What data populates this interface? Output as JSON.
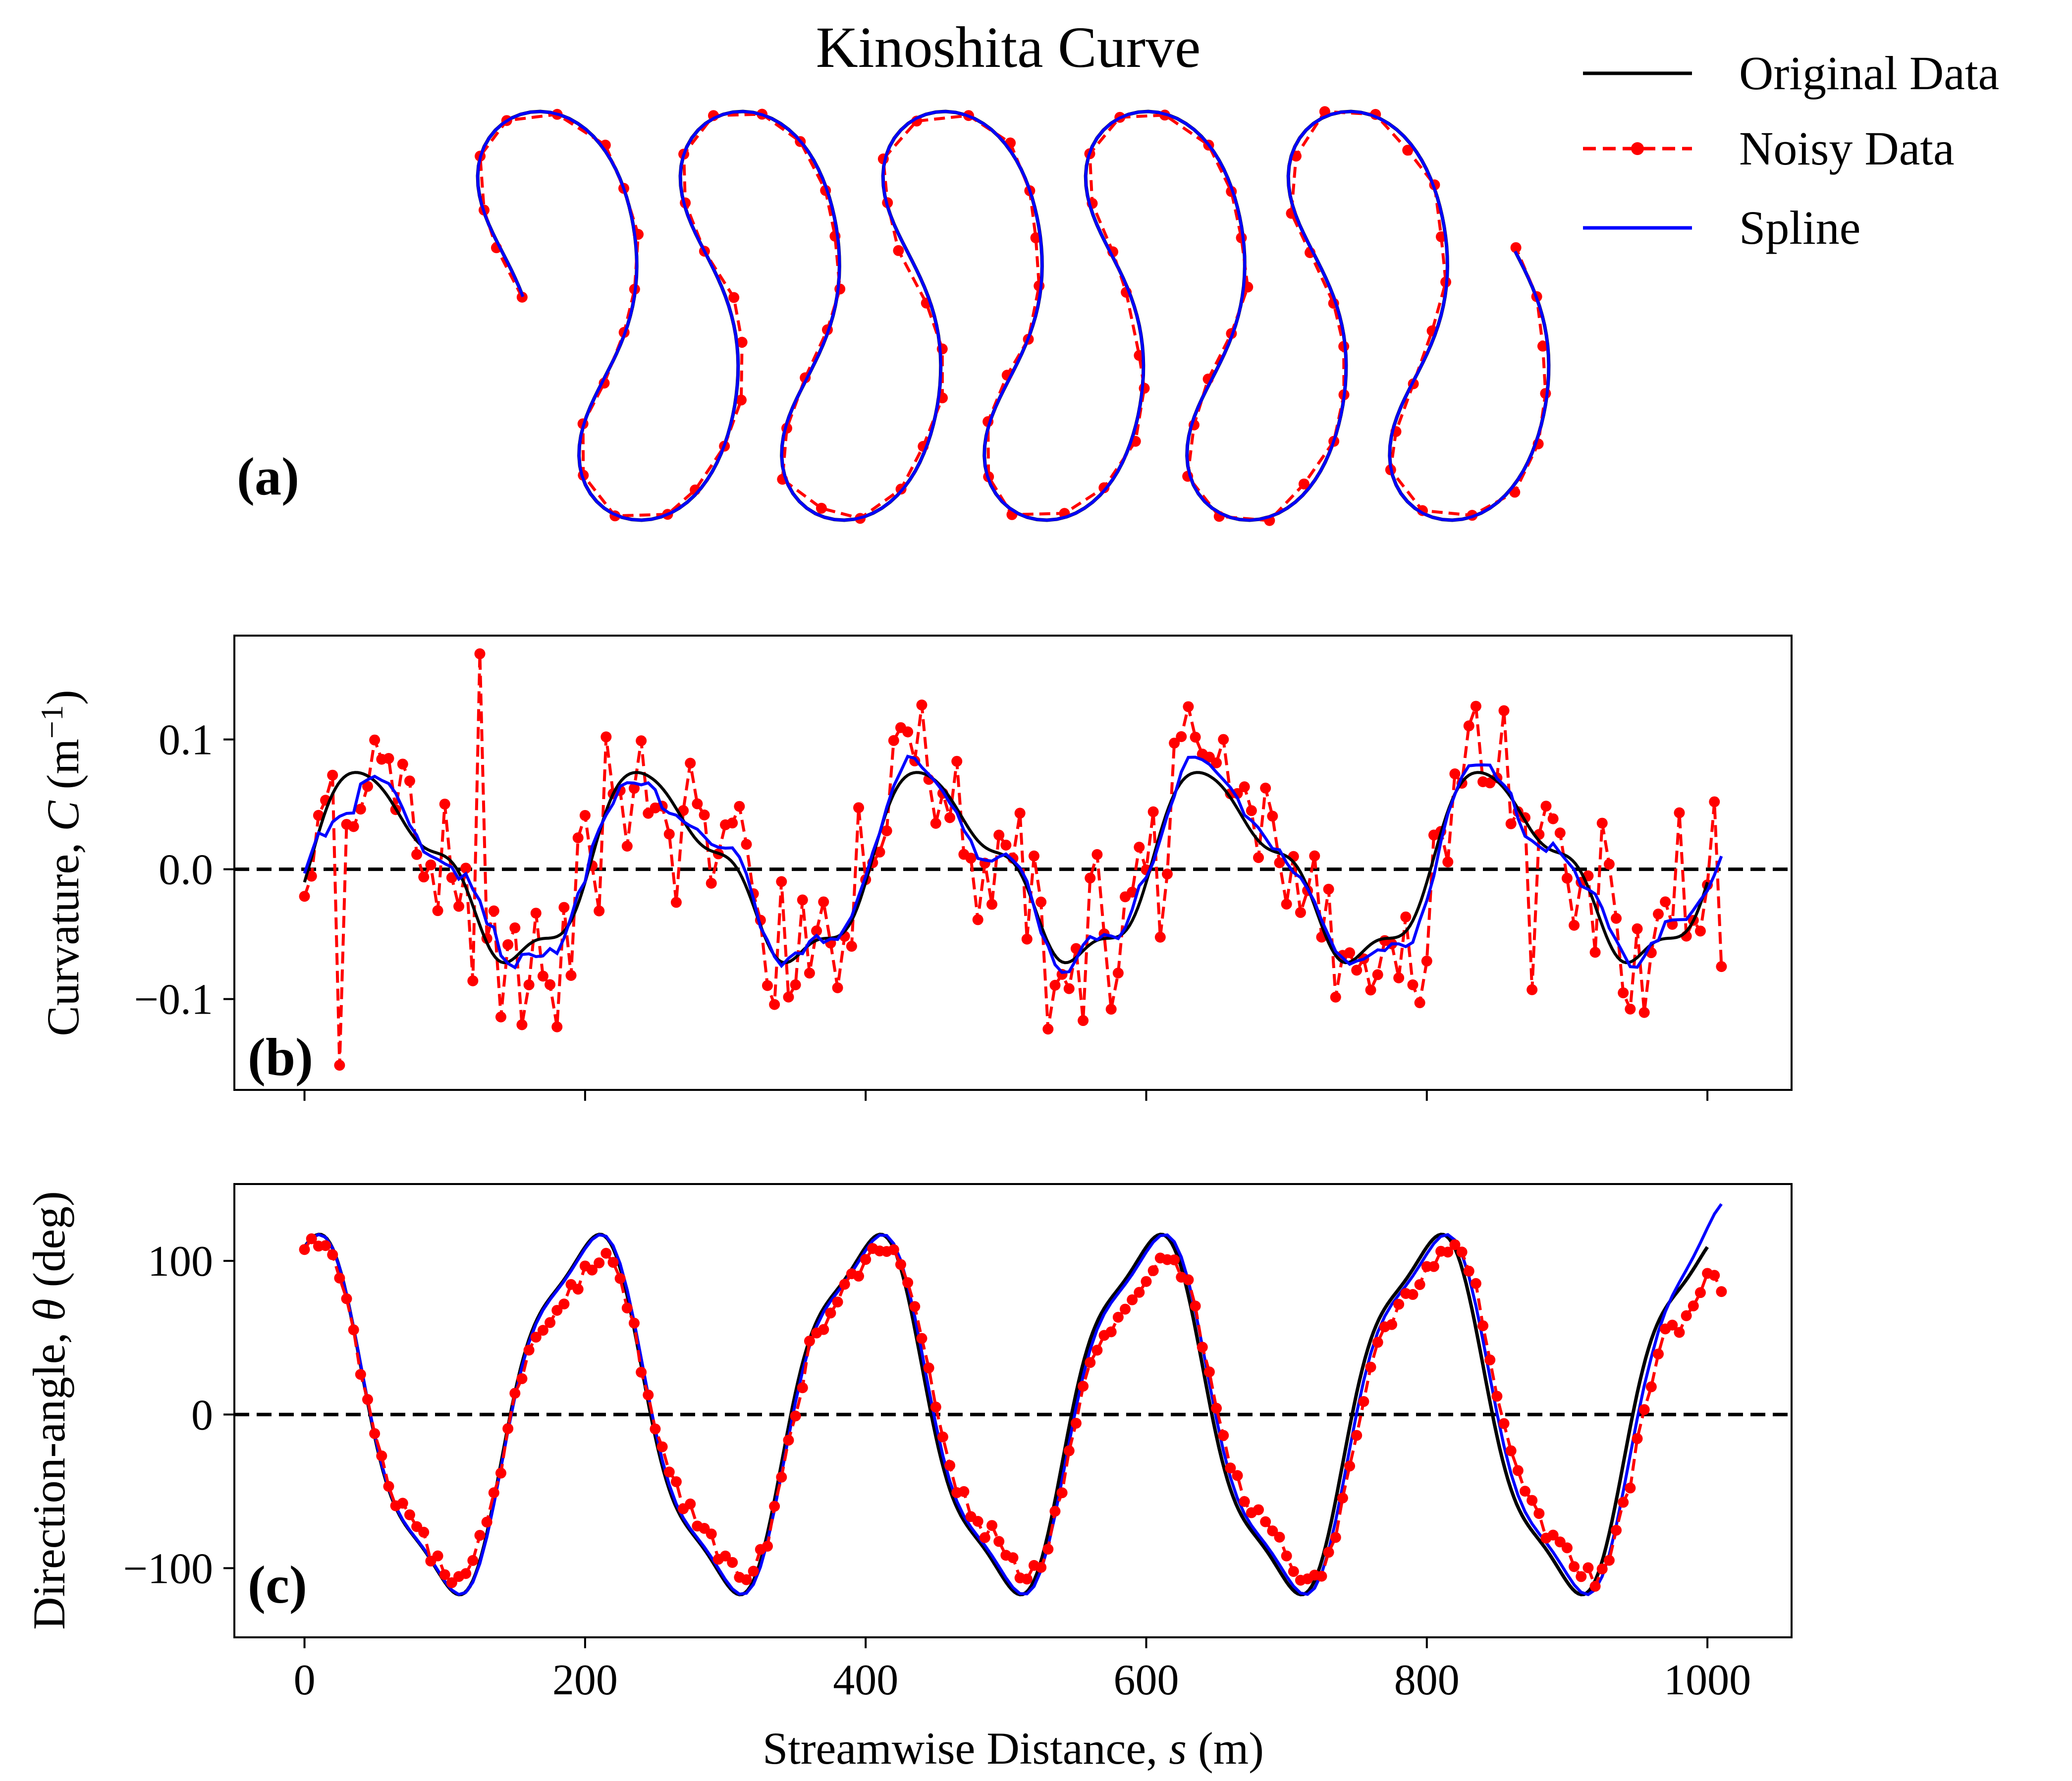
{
  "figure": {
    "title": "Kinoshita Curve",
    "panel_a_letter": "(a)",
    "panel_b_letter": "(b)",
    "panel_c_letter": "(c)"
  },
  "legend": {
    "items": [
      {
        "label": "Original Data",
        "color": "#000000",
        "style": "solid"
      },
      {
        "label": "Noisy Data",
        "color": "#ff0000",
        "style": "dashed-markers"
      },
      {
        "label": "Spline",
        "color": "#0000ff",
        "style": "solid"
      }
    ]
  },
  "axes": {
    "b_ylabel_prefix": "Curvature, ",
    "b_ylabel_var": "C",
    "b_ylabel_unit": " (m",
    "b_ylabel_exp": "−1",
    "b_ylabel_close": ")",
    "c_ylabel_prefix": "Direction-angle, ",
    "c_ylabel_var": "θ",
    "c_ylabel_unit": " (deg)",
    "xlabel_prefix": "Streamwise Distance, ",
    "xlabel_var": "s",
    "xlabel_unit": " (m)",
    "x_ticks": [
      "0",
      "200",
      "400",
      "600",
      "800",
      "1000"
    ],
    "b_yticks": [
      "−0.1",
      "0.0",
      "0.1"
    ],
    "c_yticks": [
      "−100",
      "0",
      "100"
    ]
  },
  "chart_data": [
    {
      "panel": "a",
      "type": "line",
      "description_source": "planform x–y of Kinoshita meander",
      "series": [
        {
          "name": "Original Data",
          "color": "#000000"
        },
        {
          "name": "Noisy Data",
          "color": "#ff0000"
        },
        {
          "name": "Spline",
          "color": "#0000ff"
        }
      ],
      "model": {
        "wavelength_s": 200,
        "theta0_deg": 115,
        "length": 1010,
        "axis": "equal",
        "visible_axes": false
      }
    },
    {
      "panel": "b",
      "type": "line",
      "xlim": [
        -50,
        1060
      ],
      "ylim": [
        -0.17,
        0.18
      ],
      "xlabel": "Streamwise Distance, s (m)",
      "ylabel": "Curvature, C (m−1)",
      "reference_line": {
        "y": 0,
        "style": "dashed",
        "color": "#000000"
      },
      "series": [
        {
          "name": "Original Data",
          "color": "#000000",
          "x_range": [
            0,
            1000
          ],
          "amplitude": 0.068,
          "period": 200
        },
        {
          "name": "Noisy Data",
          "color": "#ff0000",
          "x_range": [
            0,
            1010
          ],
          "n_points": 202,
          "noise_std": 0.035
        },
        {
          "name": "Spline",
          "color": "#0000ff",
          "x_range": [
            0,
            1010
          ]
        }
      ],
      "annotated_extremes": {
        "max": 0.166,
        "min": -0.151,
        "last": -0.075
      }
    },
    {
      "panel": "c",
      "type": "line",
      "xlim": [
        -50,
        1060
      ],
      "ylim": [
        -145,
        150
      ],
      "xlabel": "Streamwise Distance, s (m)",
      "ylabel": "Direction-angle, θ (deg)",
      "reference_line": {
        "y": 0,
        "style": "dashed",
        "color": "#000000"
      },
      "series": [
        {
          "name": "Original Data",
          "color": "#000000",
          "x_range": [
            0,
            1000
          ],
          "amplitude": 115,
          "period": 200
        },
        {
          "name": "Noisy Data",
          "color": "#ff0000",
          "x_range": [
            0,
            1010
          ],
          "n_points": 202,
          "amplitude_peaks": 100
        },
        {
          "name": "Spline",
          "color": "#0000ff",
          "x_range": [
            0,
            1010
          ],
          "end_value": 137
        }
      ],
      "annotated_extremes": {
        "max": 121,
        "min": -131,
        "last": 80
      }
    }
  ]
}
